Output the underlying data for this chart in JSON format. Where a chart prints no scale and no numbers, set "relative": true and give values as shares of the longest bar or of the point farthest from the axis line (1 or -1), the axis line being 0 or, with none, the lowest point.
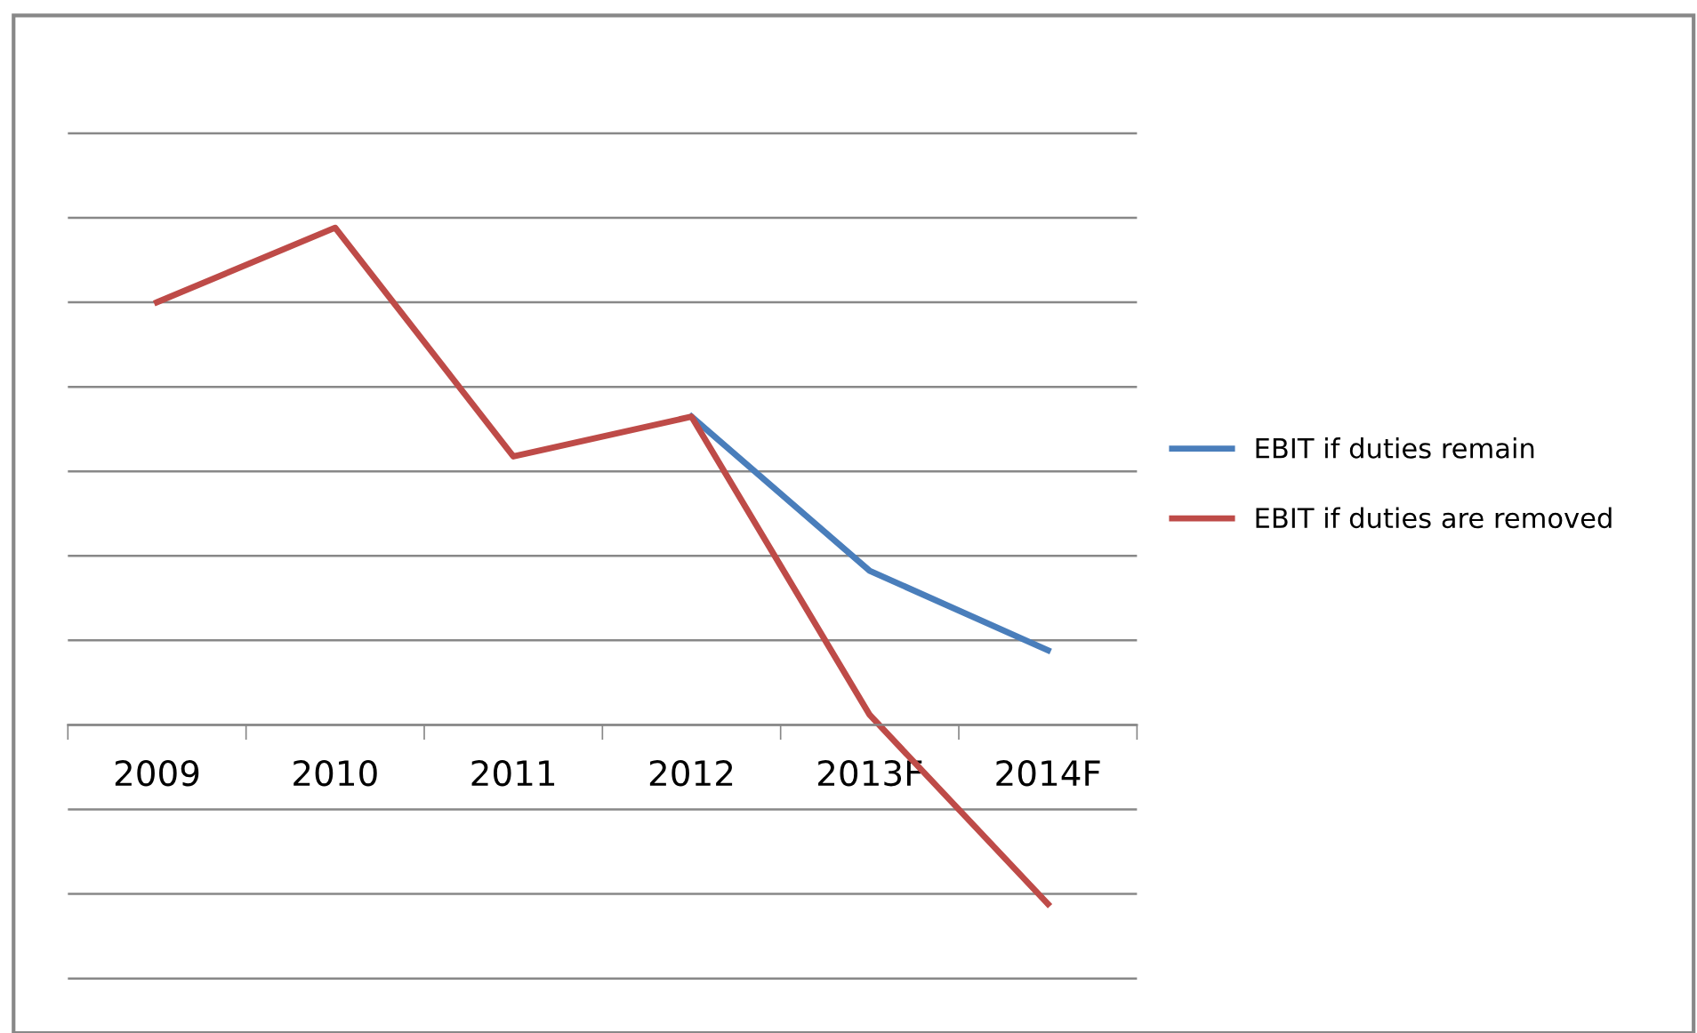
{
  "chart_data": {
    "type": "line",
    "relative": true,
    "categories": [
      "2009",
      "2010",
      "2011",
      "2012",
      "2013F",
      "2014F"
    ],
    "series": [
      {
        "name": "EBIT if duties remain",
        "color": "#4a7ebb",
        "values": [
          null,
          null,
          null,
          0.62,
          0.31,
          0.15
        ]
      },
      {
        "name": "EBIT if duties are removed",
        "color": "#be4b48",
        "values": [
          0.85,
          1,
          0.54,
          0.62,
          0.02,
          -0.36
        ]
      }
    ],
    "grid": "y",
    "legend": "right",
    "marker": "none",
    "line_style": "solid"
  }
}
